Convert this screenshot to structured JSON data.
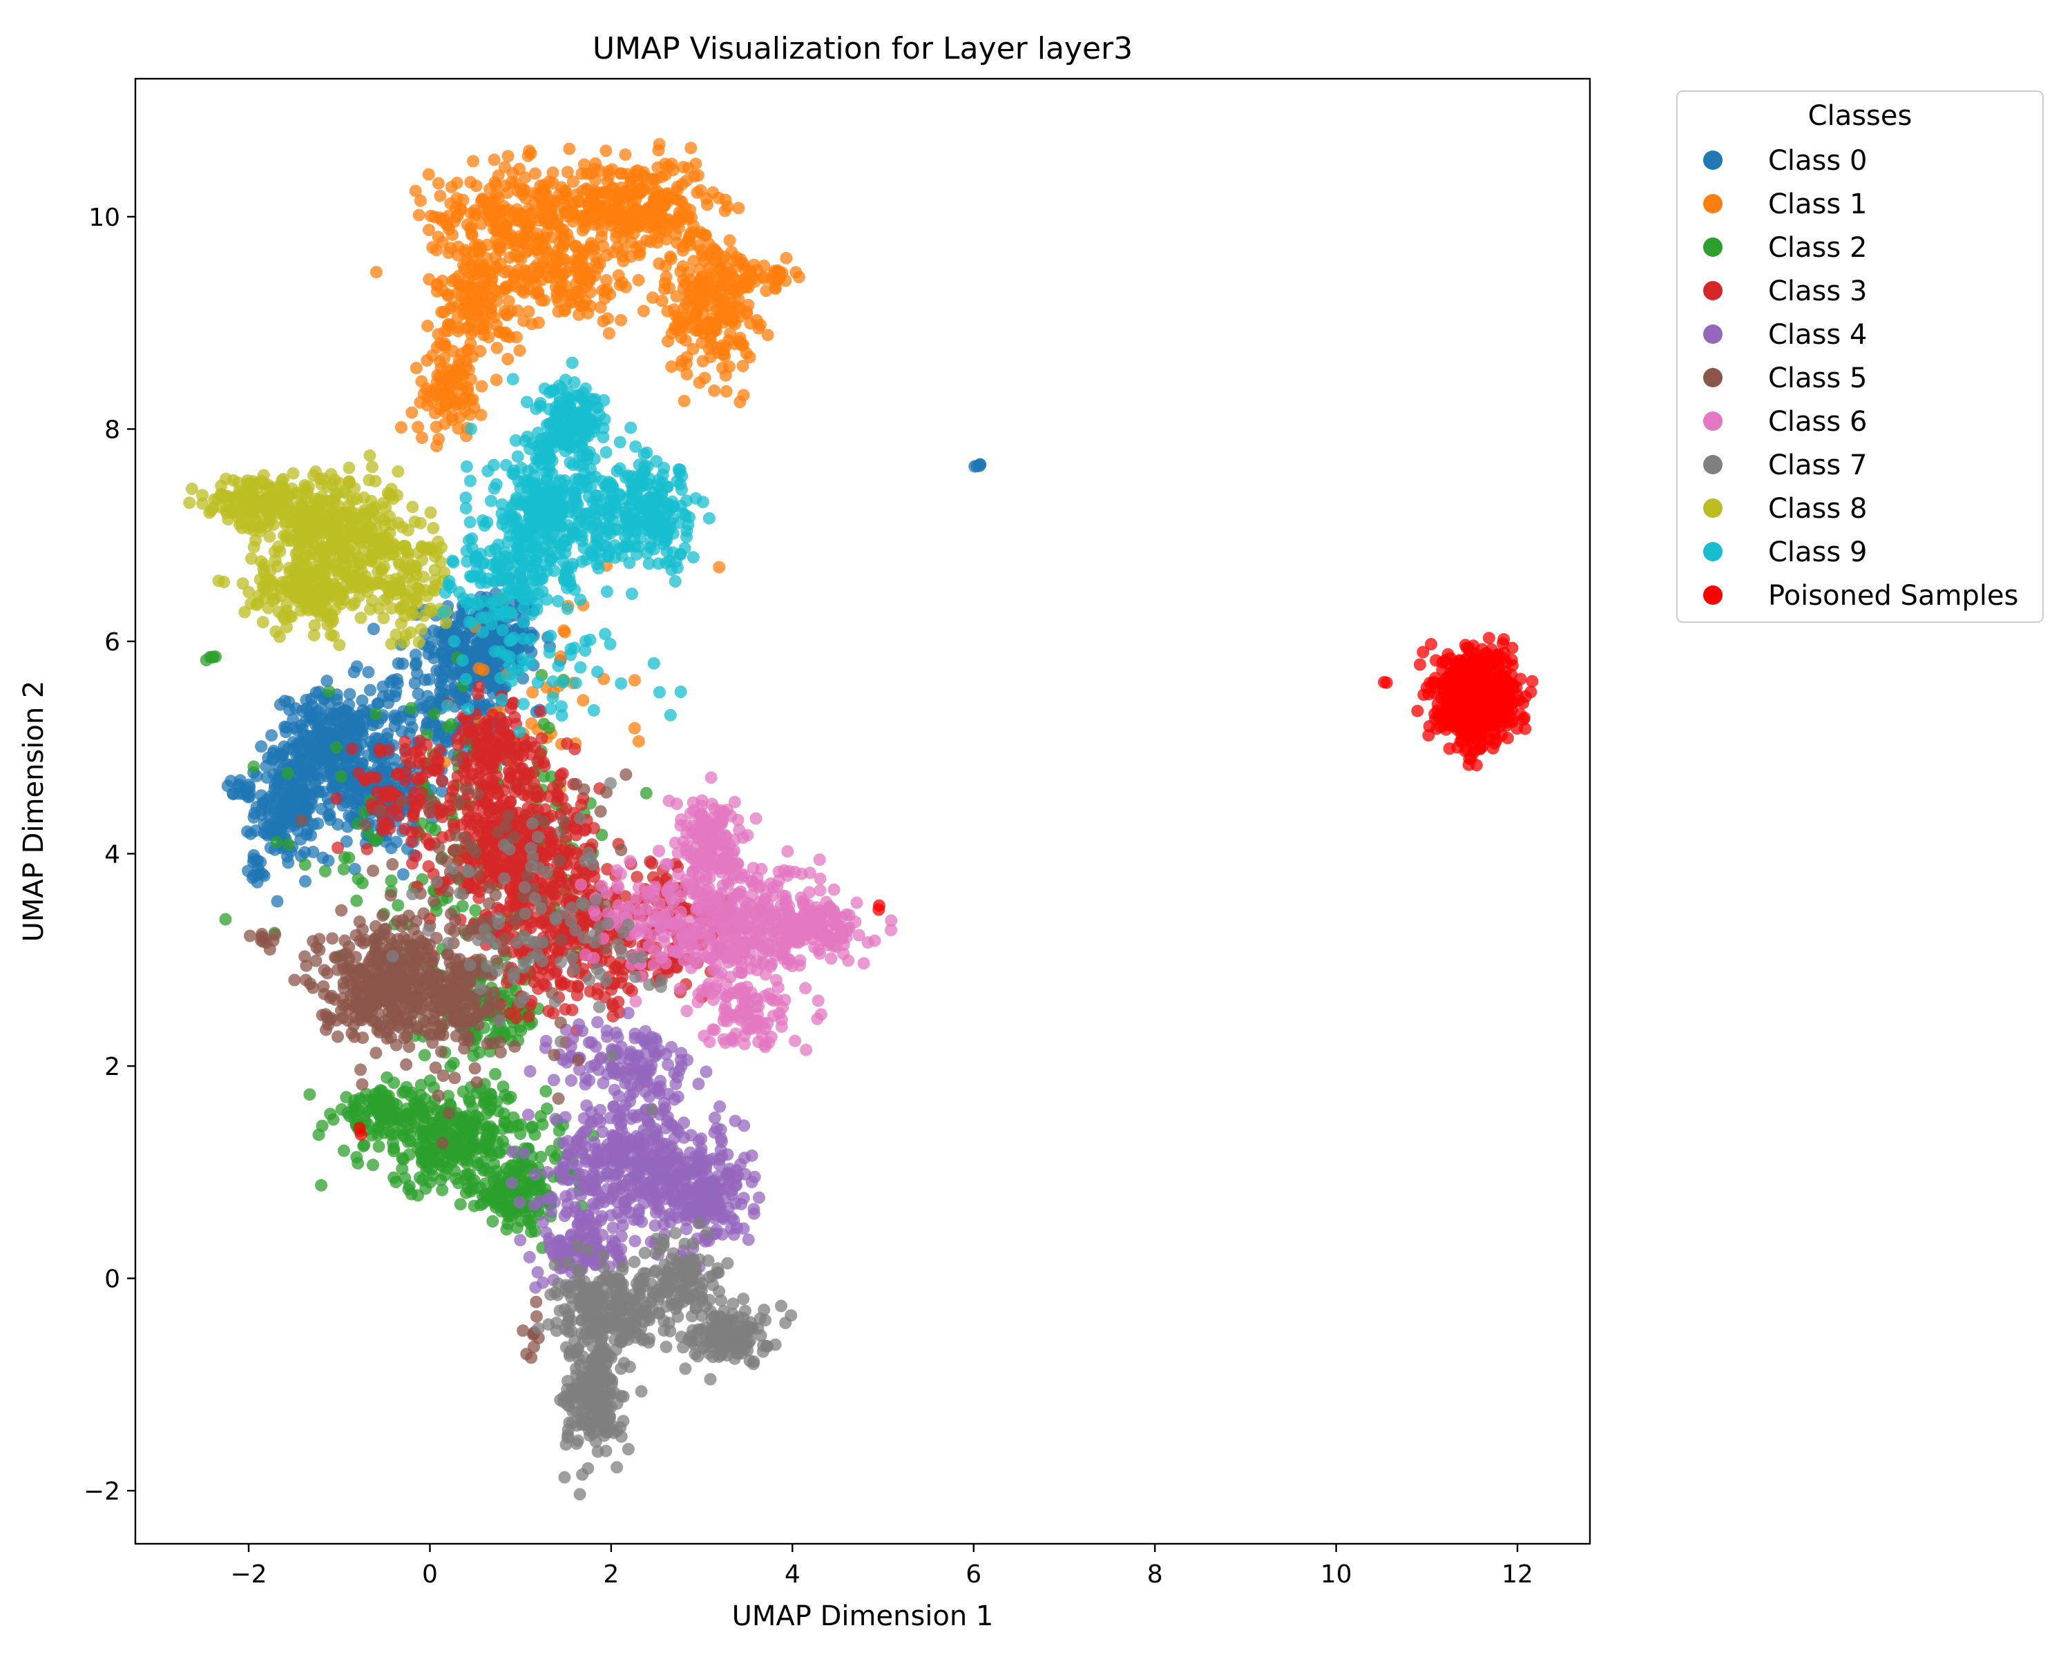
{
  "chart_data": {
    "type": "scatter",
    "title": "UMAP Visualization for Layer layer3",
    "xlabel": "UMAP Dimension 1",
    "ylabel": "UMAP Dimension 2",
    "xlim": [
      -3.25,
      12.8
    ],
    "ylim": [
      -2.5,
      11.3
    ],
    "xticks": [
      -2,
      0,
      2,
      4,
      6,
      8,
      10,
      12
    ],
    "yticks": [
      -2,
      0,
      2,
      4,
      6,
      8,
      10
    ],
    "grid": false,
    "legend": {
      "title": "Classes",
      "placement": "outside-right-top",
      "entries": [
        "Class 0",
        "Class 1",
        "Class 2",
        "Class 3",
        "Class 4",
        "Class 5",
        "Class 6",
        "Class 7",
        "Class 8",
        "Class 9",
        "Poisoned Samples"
      ]
    },
    "series": [
      {
        "name": "Class 0",
        "color": "#1f77b4",
        "clusters": [
          {
            "cx": 0.6,
            "cy": 6.0,
            "rx": 0.55,
            "ry": 0.45,
            "n": 260
          },
          {
            "cx": -1.1,
            "cy": 5.0,
            "rx": 0.55,
            "ry": 0.45,
            "n": 300
          },
          {
            "cx": -1.6,
            "cy": 4.4,
            "rx": 0.3,
            "ry": 0.4,
            "n": 150
          },
          {
            "cx": -0.6,
            "cy": 4.6,
            "rx": 0.6,
            "ry": 0.55,
            "n": 200
          },
          {
            "cx": 0.2,
            "cy": 5.4,
            "rx": 0.8,
            "ry": 0.5,
            "n": 160
          },
          {
            "cx": -1.9,
            "cy": 3.85,
            "rx": 0.08,
            "ry": 0.12,
            "n": 14
          },
          {
            "cx": -2.1,
            "cy": 4.6,
            "rx": 0.15,
            "ry": 0.1,
            "n": 14
          },
          {
            "cx": 6.07,
            "cy": 7.65,
            "rx": 0.04,
            "ry": 0.02,
            "n": 5
          }
        ]
      },
      {
        "name": "Class 1",
        "color": "#ff7f0e",
        "clusters": [
          {
            "cx": 1.0,
            "cy": 10.0,
            "rx": 0.9,
            "ry": 0.45,
            "n": 280
          },
          {
            "cx": 2.3,
            "cy": 10.1,
            "rx": 0.7,
            "ry": 0.4,
            "n": 280
          },
          {
            "cx": 3.1,
            "cy": 9.2,
            "rx": 0.45,
            "ry": 0.65,
            "n": 250
          },
          {
            "cx": 0.55,
            "cy": 9.2,
            "rx": 0.45,
            "ry": 0.5,
            "n": 160
          },
          {
            "cx": 0.2,
            "cy": 8.35,
            "rx": 0.35,
            "ry": 0.35,
            "n": 90
          },
          {
            "cx": 1.6,
            "cy": 9.4,
            "rx": 0.6,
            "ry": 0.35,
            "n": 120
          },
          {
            "cx": 3.75,
            "cy": 9.45,
            "rx": 0.25,
            "ry": 0.1,
            "n": 30
          },
          {
            "cx": 1.2,
            "cy": 5.5,
            "rx": 1.0,
            "ry": 1.0,
            "n": 40
          }
        ]
      },
      {
        "name": "Class 2",
        "color": "#2ca02c",
        "clusters": [
          {
            "cx": 0.3,
            "cy": 1.3,
            "rx": 0.9,
            "ry": 0.45,
            "n": 320
          },
          {
            "cx": 1.0,
            "cy": 0.8,
            "rx": 0.5,
            "ry": 0.3,
            "n": 140
          },
          {
            "cx": -0.5,
            "cy": 1.55,
            "rx": 0.5,
            "ry": 0.2,
            "n": 110
          },
          {
            "cx": 0.6,
            "cy": 2.5,
            "rx": 0.6,
            "ry": 0.4,
            "n": 120
          },
          {
            "cx": 0.5,
            "cy": 4.0,
            "rx": 1.5,
            "ry": 1.2,
            "n": 180
          },
          {
            "cx": -2.4,
            "cy": 5.85,
            "rx": 0.05,
            "ry": 0.02,
            "n": 5
          }
        ]
      },
      {
        "name": "Class 3",
        "color": "#d62728",
        "clusters": [
          {
            "cx": 1.0,
            "cy": 4.0,
            "rx": 0.75,
            "ry": 0.7,
            "n": 420
          },
          {
            "cx": 1.6,
            "cy": 3.1,
            "rx": 0.9,
            "ry": 0.6,
            "n": 220
          },
          {
            "cx": 0.7,
            "cy": 4.9,
            "rx": 0.5,
            "ry": 0.45,
            "n": 160
          },
          {
            "cx": 2.6,
            "cy": 3.3,
            "rx": 0.8,
            "ry": 0.6,
            "n": 120
          },
          {
            "cx": -0.3,
            "cy": 4.6,
            "rx": 0.5,
            "ry": 0.5,
            "n": 80
          }
        ]
      },
      {
        "name": "Class 4",
        "color": "#9467bd",
        "clusters": [
          {
            "cx": 2.2,
            "cy": 1.1,
            "rx": 0.8,
            "ry": 0.5,
            "n": 360
          },
          {
            "cx": 3.0,
            "cy": 0.8,
            "rx": 0.5,
            "ry": 0.45,
            "n": 200
          },
          {
            "cx": 1.7,
            "cy": 0.3,
            "rx": 0.4,
            "ry": 0.35,
            "n": 130
          },
          {
            "cx": 2.2,
            "cy": 2.0,
            "rx": 0.7,
            "ry": 0.4,
            "n": 130
          }
        ]
      },
      {
        "name": "Class 5",
        "color": "#8c564b",
        "clusters": [
          {
            "cx": -0.5,
            "cy": 2.8,
            "rx": 0.65,
            "ry": 0.5,
            "n": 380
          },
          {
            "cx": 0.3,
            "cy": 2.6,
            "rx": 0.4,
            "ry": 0.4,
            "n": 110
          },
          {
            "cx": 0.5,
            "cy": 3.4,
            "rx": 1.4,
            "ry": 1.4,
            "n": 120
          },
          {
            "cx": -1.85,
            "cy": 3.2,
            "rx": 0.15,
            "ry": 0.08,
            "n": 10
          },
          {
            "cx": 1.1,
            "cy": -0.5,
            "rx": 0.15,
            "ry": 0.25,
            "n": 10
          }
        ]
      },
      {
        "name": "Class 6",
        "color": "#e377c2",
        "clusters": [
          {
            "cx": 3.4,
            "cy": 3.3,
            "rx": 0.7,
            "ry": 0.55,
            "n": 320
          },
          {
            "cx": 3.1,
            "cy": 4.1,
            "rx": 0.35,
            "ry": 0.4,
            "n": 140
          },
          {
            "cx": 4.3,
            "cy": 3.3,
            "rx": 0.45,
            "ry": 0.25,
            "n": 140
          },
          {
            "cx": 3.5,
            "cy": 2.5,
            "rx": 0.45,
            "ry": 0.3,
            "n": 90
          },
          {
            "cx": 2.3,
            "cy": 3.4,
            "rx": 0.5,
            "ry": 0.5,
            "n": 80
          }
        ]
      },
      {
        "name": "Class 7",
        "color": "#7f7f7f",
        "clusters": [
          {
            "cx": 2.0,
            "cy": -0.3,
            "rx": 0.55,
            "ry": 0.35,
            "n": 240
          },
          {
            "cx": 1.8,
            "cy": -1.1,
            "rx": 0.3,
            "ry": 0.55,
            "n": 200
          },
          {
            "cx": 3.3,
            "cy": -0.5,
            "rx": 0.4,
            "ry": 0.25,
            "n": 140
          },
          {
            "cx": 2.8,
            "cy": 0.0,
            "rx": 0.35,
            "ry": 0.3,
            "n": 110
          },
          {
            "cx": 1.3,
            "cy": 3.3,
            "rx": 1.1,
            "ry": 1.0,
            "n": 90
          }
        ]
      },
      {
        "name": "Class 8",
        "color": "#bcbd22",
        "clusters": [
          {
            "cx": -1.0,
            "cy": 7.0,
            "rx": 0.75,
            "ry": 0.5,
            "n": 400
          },
          {
            "cx": -1.9,
            "cy": 7.3,
            "rx": 0.5,
            "ry": 0.22,
            "n": 140
          },
          {
            "cx": -1.3,
            "cy": 6.45,
            "rx": 0.7,
            "ry": 0.3,
            "n": 150
          },
          {
            "cx": -0.2,
            "cy": 6.5,
            "rx": 0.35,
            "ry": 0.5,
            "n": 80
          }
        ]
      },
      {
        "name": "Class 9",
        "color": "#17becf",
        "clusters": [
          {
            "cx": 1.3,
            "cy": 7.2,
            "rx": 0.6,
            "ry": 0.6,
            "n": 320
          },
          {
            "cx": 2.4,
            "cy": 7.15,
            "rx": 0.55,
            "ry": 0.45,
            "n": 240
          },
          {
            "cx": 1.55,
            "cy": 8.1,
            "rx": 0.35,
            "ry": 0.35,
            "n": 150
          },
          {
            "cx": 0.8,
            "cy": 6.6,
            "rx": 0.5,
            "ry": 0.4,
            "n": 130
          },
          {
            "cx": 1.3,
            "cy": 5.8,
            "rx": 1.1,
            "ry": 0.6,
            "n": 60
          }
        ]
      },
      {
        "name": "Poisoned Samples",
        "color": "#ff0000",
        "clusters": [
          {
            "cx": 11.55,
            "cy": 5.48,
            "rx": 0.38,
            "ry": 0.38,
            "n": 700
          },
          {
            "cx": 10.55,
            "cy": 5.6,
            "rx": 0.02,
            "ry": 0.02,
            "n": 2
          },
          {
            "cx": 4.95,
            "cy": 3.5,
            "rx": 0.04,
            "ry": 0.04,
            "n": 2
          },
          {
            "cx": -0.75,
            "cy": 1.4,
            "rx": 0.03,
            "ry": 0.03,
            "n": 2
          }
        ]
      }
    ]
  }
}
